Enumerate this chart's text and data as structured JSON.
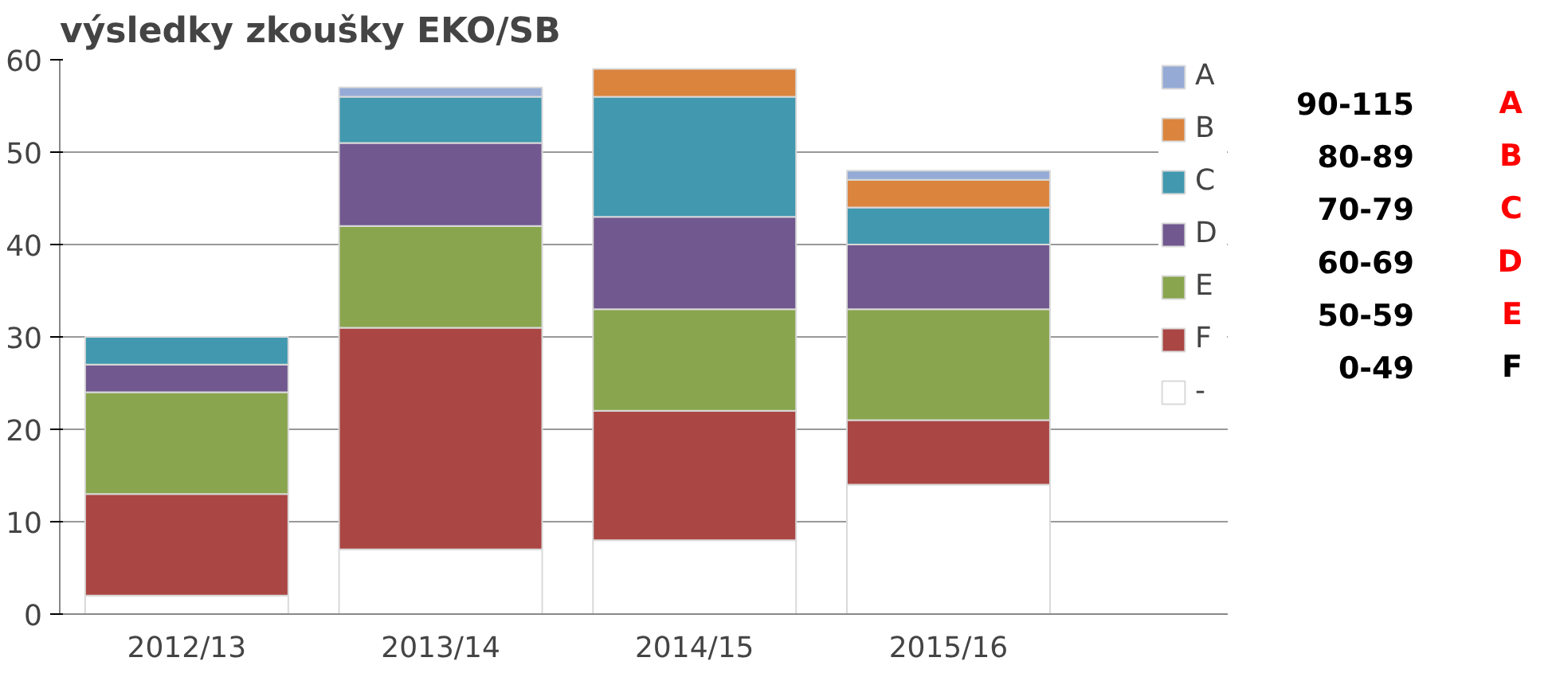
{
  "chart_data": {
    "type": "bar",
    "title": "výsledky zkoušky EKO/SB",
    "categories": [
      "2012/13",
      "2013/14",
      "2014/15",
      "2015/16"
    ],
    "stacked": true,
    "ylim": [
      0,
      60
    ],
    "yticks": [
      0,
      10,
      20,
      30,
      40,
      50,
      60
    ],
    "grid": "y",
    "legend": "right",
    "series": [
      {
        "name": "-",
        "color": "#ffffff",
        "values": [
          2,
          7,
          8,
          14
        ]
      },
      {
        "name": "F",
        "color": "#aa4643",
        "values": [
          11,
          24,
          14,
          7
        ]
      },
      {
        "name": "E",
        "color": "#89a54e",
        "values": [
          11,
          11,
          11,
          12
        ]
      },
      {
        "name": "D",
        "color": "#71588f",
        "values": [
          3,
          9,
          10,
          7
        ]
      },
      {
        "name": "C",
        "color": "#4198af",
        "values": [
          3,
          5,
          13,
          4
        ]
      },
      {
        "name": "B",
        "color": "#db843d",
        "values": [
          0,
          0,
          3,
          3
        ]
      },
      {
        "name": "A",
        "color": "#95abd6",
        "values": [
          0,
          1,
          0,
          1
        ]
      }
    ],
    "annotations": [
      "90-115",
      "A",
      "80-89",
      "B",
      "70-79",
      "C",
      "60-69",
      "D",
      "50-59",
      "E",
      "0-49",
      "F"
    ]
  }
}
